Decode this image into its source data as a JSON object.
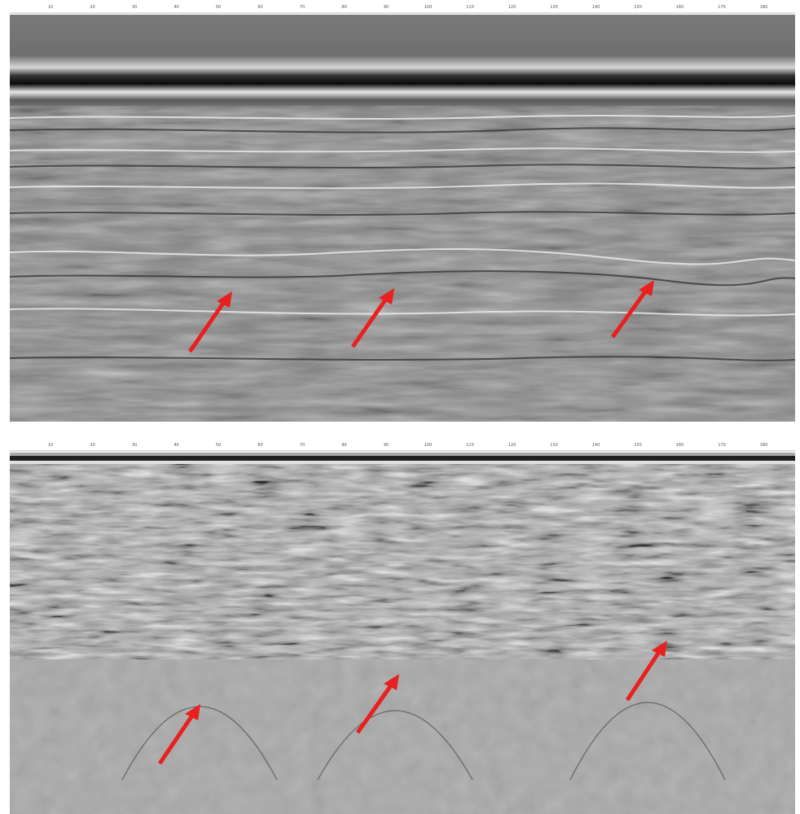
{
  "colors": {
    "arrow": "#e8201f",
    "page_background": "#ffffff",
    "radargram_gray": "#8a8a8a"
  },
  "panels": [
    {
      "name": "top-radargram",
      "x_ticks": [
        "10",
        "20",
        "30",
        "40",
        "50",
        "60",
        "70",
        "80",
        "90",
        "100",
        "110",
        "120",
        "130",
        "140",
        "150",
        "160",
        "170",
        "180"
      ],
      "arrows_count": 3
    },
    {
      "name": "bottom-radargram",
      "x_ticks": [
        "10",
        "20",
        "30",
        "40",
        "50",
        "60",
        "70",
        "80",
        "90",
        "100",
        "110",
        "120",
        "130",
        "140",
        "150",
        "160",
        "170",
        "180"
      ],
      "arrows_count": 3
    }
  ]
}
